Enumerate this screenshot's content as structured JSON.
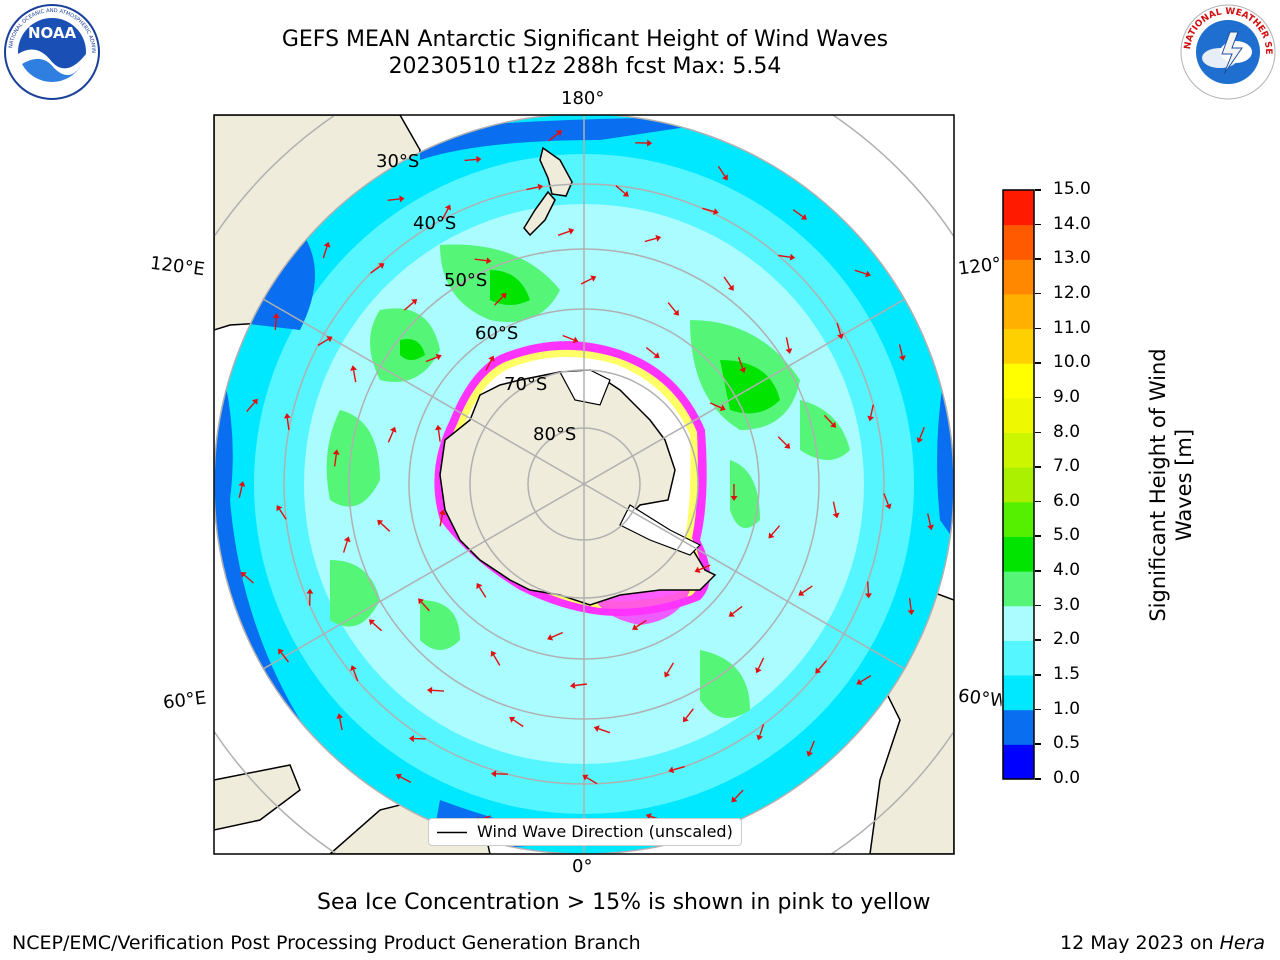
{
  "title": {
    "line1": "GEFS MEAN Antarctic Significant Height of Wind Waves",
    "line2": "20230510 t12z 288h fcst   Max: 5.54"
  },
  "logos": {
    "left": "NOAA",
    "right": "NATIONAL WEATHER SERVICE",
    "left_icon": "noaa-logo",
    "right_icon": "nws-logo"
  },
  "map": {
    "projection": "south-polar-stereographic",
    "lon_labels": {
      "top": "180°",
      "bottom": "0°",
      "upper_left": "120°E",
      "upper_right": "120°W",
      "lower_left": "60°E",
      "lower_right": "60°W"
    },
    "lat_labels": [
      "30°S",
      "40°S",
      "50°S",
      "60°S",
      "70°S",
      "80°S"
    ],
    "land_color": "#efecdc",
    "ice_colors": [
      "#ff33ff",
      "#ffff66"
    ],
    "arrow_color": "#e01010"
  },
  "legend": {
    "label": "Wind Wave Direction (unscaled)"
  },
  "colorbar": {
    "label": "Significant Height of Wind Waves [m]",
    "ticks": [
      "0.0",
      "0.5",
      "1.0",
      "1.5",
      "2.0",
      "3.0",
      "4.0",
      "5.0",
      "6.0",
      "7.0",
      "8.0",
      "9.0",
      "10.0",
      "11.0",
      "12.0",
      "13.0",
      "14.0",
      "15.0"
    ],
    "colors": [
      "#0000ff",
      "#0a6ef0",
      "#00e8ff",
      "#55f6ff",
      "#aafcff",
      "#55f678",
      "#00e400",
      "#55ef00",
      "#aaf000",
      "#ccf500",
      "#eef800",
      "#ffff00",
      "#ffd000",
      "#ffb000",
      "#ff8800",
      "#ff5a00",
      "#ff1a00"
    ]
  },
  "note": "Sea Ice Concentration > 15% is shown in pink to yellow",
  "footer": {
    "left": "NCEP/EMC/Verification Post Processing Product Generation Branch",
    "right_prefix": "12 May 2023 on ",
    "right_machine": "Hera"
  }
}
